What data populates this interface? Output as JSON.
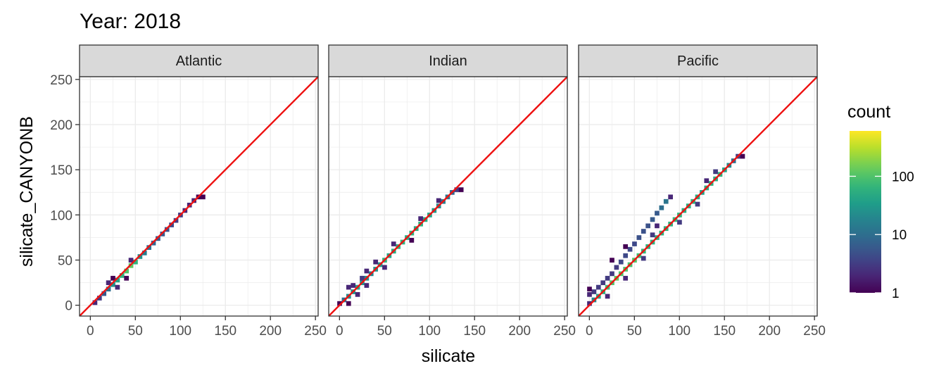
{
  "chart_data": {
    "type": "heatmap",
    "title": "Year: 2018",
    "xlabel": "silicate",
    "ylabel": "silicate_CANYONB",
    "xlim": [
      -12,
      253
    ],
    "ylim": [
      -12,
      253
    ],
    "xticks": [
      "0",
      "50",
      "100",
      "150",
      "200",
      "250"
    ],
    "yticks": [
      "0",
      "50",
      "100",
      "150",
      "200",
      "250"
    ],
    "grid": true,
    "reference_line": {
      "slope": 1,
      "intercept": 0,
      "color": "#ee1111"
    },
    "legend": {
      "title": "count",
      "position": "right",
      "scale": "log",
      "range": [
        1,
        600
      ],
      "ticks": [
        "1",
        "10",
        "100"
      ],
      "colormap": "viridis"
    },
    "panels": [
      {
        "name": "Atlantic",
        "bins": [
          {
            "x": 5,
            "y": 3,
            "count": 2
          },
          {
            "x": 10,
            "y": 8,
            "count": 3
          },
          {
            "x": 15,
            "y": 13,
            "count": 6
          },
          {
            "x": 20,
            "y": 18,
            "count": 10
          },
          {
            "x": 25,
            "y": 23,
            "count": 25
          },
          {
            "x": 30,
            "y": 28,
            "count": 40
          },
          {
            "x": 35,
            "y": 33,
            "count": 60
          },
          {
            "x": 40,
            "y": 38,
            "count": 100
          },
          {
            "x": 45,
            "y": 44,
            "count": 120
          },
          {
            "x": 50,
            "y": 48,
            "count": 60
          },
          {
            "x": 55,
            "y": 54,
            "count": 25
          },
          {
            "x": 60,
            "y": 58,
            "count": 15
          },
          {
            "x": 65,
            "y": 64,
            "count": 10
          },
          {
            "x": 70,
            "y": 69,
            "count": 8
          },
          {
            "x": 75,
            "y": 74,
            "count": 6
          },
          {
            "x": 80,
            "y": 79,
            "count": 6
          },
          {
            "x": 85,
            "y": 84,
            "count": 5
          },
          {
            "x": 90,
            "y": 89,
            "count": 4
          },
          {
            "x": 95,
            "y": 94,
            "count": 3
          },
          {
            "x": 100,
            "y": 100,
            "count": 3
          },
          {
            "x": 105,
            "y": 105,
            "count": 2
          },
          {
            "x": 110,
            "y": 111,
            "count": 2
          },
          {
            "x": 115,
            "y": 116,
            "count": 2
          },
          {
            "x": 120,
            "y": 120,
            "count": 1
          },
          {
            "x": 125,
            "y": 120,
            "count": 1
          },
          {
            "x": 20,
            "y": 25,
            "count": 2
          },
          {
            "x": 25,
            "y": 30,
            "count": 1
          },
          {
            "x": 30,
            "y": 20,
            "count": 2
          },
          {
            "x": 40,
            "y": 30,
            "count": 1
          },
          {
            "x": 45,
            "y": 50,
            "count": 2
          }
        ]
      },
      {
        "name": "Indian",
        "bins": [
          {
            "x": 0,
            "y": 2,
            "count": 1
          },
          {
            "x": 5,
            "y": 6,
            "count": 10
          },
          {
            "x": 10,
            "y": 10,
            "count": 20
          },
          {
            "x": 15,
            "y": 15,
            "count": 30
          },
          {
            "x": 20,
            "y": 20,
            "count": 40
          },
          {
            "x": 25,
            "y": 25,
            "count": 30
          },
          {
            "x": 30,
            "y": 30,
            "count": 25
          },
          {
            "x": 35,
            "y": 35,
            "count": 20
          },
          {
            "x": 40,
            "y": 40,
            "count": 25
          },
          {
            "x": 45,
            "y": 45,
            "count": 30
          },
          {
            "x": 50,
            "y": 50,
            "count": 60
          },
          {
            "x": 55,
            "y": 55,
            "count": 40
          },
          {
            "x": 60,
            "y": 60,
            "count": 50
          },
          {
            "x": 65,
            "y": 65,
            "count": 60
          },
          {
            "x": 70,
            "y": 70,
            "count": 60
          },
          {
            "x": 75,
            "y": 75,
            "count": 50
          },
          {
            "x": 80,
            "y": 80,
            "count": 60
          },
          {
            "x": 85,
            "y": 85,
            "count": 50
          },
          {
            "x": 90,
            "y": 90,
            "count": 60
          },
          {
            "x": 95,
            "y": 95,
            "count": 50
          },
          {
            "x": 100,
            "y": 100,
            "count": 40
          },
          {
            "x": 105,
            "y": 105,
            "count": 30
          },
          {
            "x": 110,
            "y": 110,
            "count": 20
          },
          {
            "x": 115,
            "y": 115,
            "count": 15
          },
          {
            "x": 120,
            "y": 120,
            "count": 12
          },
          {
            "x": 125,
            "y": 125,
            "count": 8
          },
          {
            "x": 130,
            "y": 128,
            "count": 3
          },
          {
            "x": 135,
            "y": 128,
            "count": 1
          },
          {
            "x": 10,
            "y": 20,
            "count": 2
          },
          {
            "x": 15,
            "y": 22,
            "count": 2
          },
          {
            "x": 25,
            "y": 30,
            "count": 3
          },
          {
            "x": 30,
            "y": 38,
            "count": 2
          },
          {
            "x": 40,
            "y": 48,
            "count": 2
          },
          {
            "x": 60,
            "y": 68,
            "count": 2
          },
          {
            "x": 20,
            "y": 12,
            "count": 2
          },
          {
            "x": 30,
            "y": 22,
            "count": 2
          },
          {
            "x": 50,
            "y": 42,
            "count": 2
          },
          {
            "x": 80,
            "y": 72,
            "count": 1
          },
          {
            "x": 90,
            "y": 96,
            "count": 2
          },
          {
            "x": 110,
            "y": 116,
            "count": 2
          },
          {
            "x": 10,
            "y": 2,
            "count": 1
          }
        ]
      },
      {
        "name": "Pacific",
        "bins": [
          {
            "x": 0,
            "y": 2,
            "count": 2
          },
          {
            "x": 5,
            "y": 6,
            "count": 20
          },
          {
            "x": 10,
            "y": 10,
            "count": 40
          },
          {
            "x": 15,
            "y": 15,
            "count": 60
          },
          {
            "x": 20,
            "y": 20,
            "count": 80
          },
          {
            "x": 25,
            "y": 25,
            "count": 100
          },
          {
            "x": 30,
            "y": 30,
            "count": 120
          },
          {
            "x": 35,
            "y": 35,
            "count": 100
          },
          {
            "x": 40,
            "y": 40,
            "count": 100
          },
          {
            "x": 45,
            "y": 45,
            "count": 90
          },
          {
            "x": 50,
            "y": 50,
            "count": 100
          },
          {
            "x": 55,
            "y": 55,
            "count": 80
          },
          {
            "x": 60,
            "y": 60,
            "count": 70
          },
          {
            "x": 65,
            "y": 65,
            "count": 60
          },
          {
            "x": 70,
            "y": 70,
            "count": 60
          },
          {
            "x": 75,
            "y": 75,
            "count": 60
          },
          {
            "x": 80,
            "y": 80,
            "count": 60
          },
          {
            "x": 85,
            "y": 85,
            "count": 60
          },
          {
            "x": 90,
            "y": 90,
            "count": 60
          },
          {
            "x": 95,
            "y": 95,
            "count": 70
          },
          {
            "x": 100,
            "y": 100,
            "count": 60
          },
          {
            "x": 105,
            "y": 105,
            "count": 50
          },
          {
            "x": 110,
            "y": 110,
            "count": 50
          },
          {
            "x": 115,
            "y": 115,
            "count": 60
          },
          {
            "x": 120,
            "y": 120,
            "count": 50
          },
          {
            "x": 125,
            "y": 125,
            "count": 40
          },
          {
            "x": 130,
            "y": 130,
            "count": 50
          },
          {
            "x": 135,
            "y": 135,
            "count": 60
          },
          {
            "x": 140,
            "y": 140,
            "count": 50
          },
          {
            "x": 145,
            "y": 145,
            "count": 60
          },
          {
            "x": 150,
            "y": 150,
            "count": 40
          },
          {
            "x": 155,
            "y": 155,
            "count": 20
          },
          {
            "x": 160,
            "y": 160,
            "count": 10
          },
          {
            "x": 165,
            "y": 165,
            "count": 3
          },
          {
            "x": 170,
            "y": 165,
            "count": 1
          },
          {
            "x": 0,
            "y": 12,
            "count": 2
          },
          {
            "x": 5,
            "y": 15,
            "count": 3
          },
          {
            "x": 10,
            "y": 20,
            "count": 3
          },
          {
            "x": 15,
            "y": 25,
            "count": 3
          },
          {
            "x": 20,
            "y": 30,
            "count": 3
          },
          {
            "x": 25,
            "y": 35,
            "count": 3
          },
          {
            "x": 30,
            "y": 42,
            "count": 3
          },
          {
            "x": 35,
            "y": 48,
            "count": 4
          },
          {
            "x": 40,
            "y": 55,
            "count": 4
          },
          {
            "x": 45,
            "y": 62,
            "count": 4
          },
          {
            "x": 50,
            "y": 68,
            "count": 4
          },
          {
            "x": 55,
            "y": 75,
            "count": 5
          },
          {
            "x": 60,
            "y": 82,
            "count": 5
          },
          {
            "x": 65,
            "y": 88,
            "count": 5
          },
          {
            "x": 70,
            "y": 95,
            "count": 6
          },
          {
            "x": 75,
            "y": 102,
            "count": 6
          },
          {
            "x": 80,
            "y": 108,
            "count": 10
          },
          {
            "x": 85,
            "y": 115,
            "count": 12
          },
          {
            "x": 90,
            "y": 120,
            "count": 2
          },
          {
            "x": 0,
            "y": 18,
            "count": 1
          },
          {
            "x": 25,
            "y": 50,
            "count": 1
          },
          {
            "x": 40,
            "y": 65,
            "count": 1
          },
          {
            "x": 70,
            "y": 78,
            "count": 3
          },
          {
            "x": 75,
            "y": 88,
            "count": 2
          },
          {
            "x": 20,
            "y": 10,
            "count": 2
          },
          {
            "x": 40,
            "y": 30,
            "count": 2
          },
          {
            "x": 60,
            "y": 52,
            "count": 3
          },
          {
            "x": 100,
            "y": 92,
            "count": 3
          },
          {
            "x": 120,
            "y": 112,
            "count": 3
          },
          {
            "x": 140,
            "y": 148,
            "count": 3
          },
          {
            "x": 130,
            "y": 138,
            "count": 2
          }
        ]
      }
    ]
  }
}
